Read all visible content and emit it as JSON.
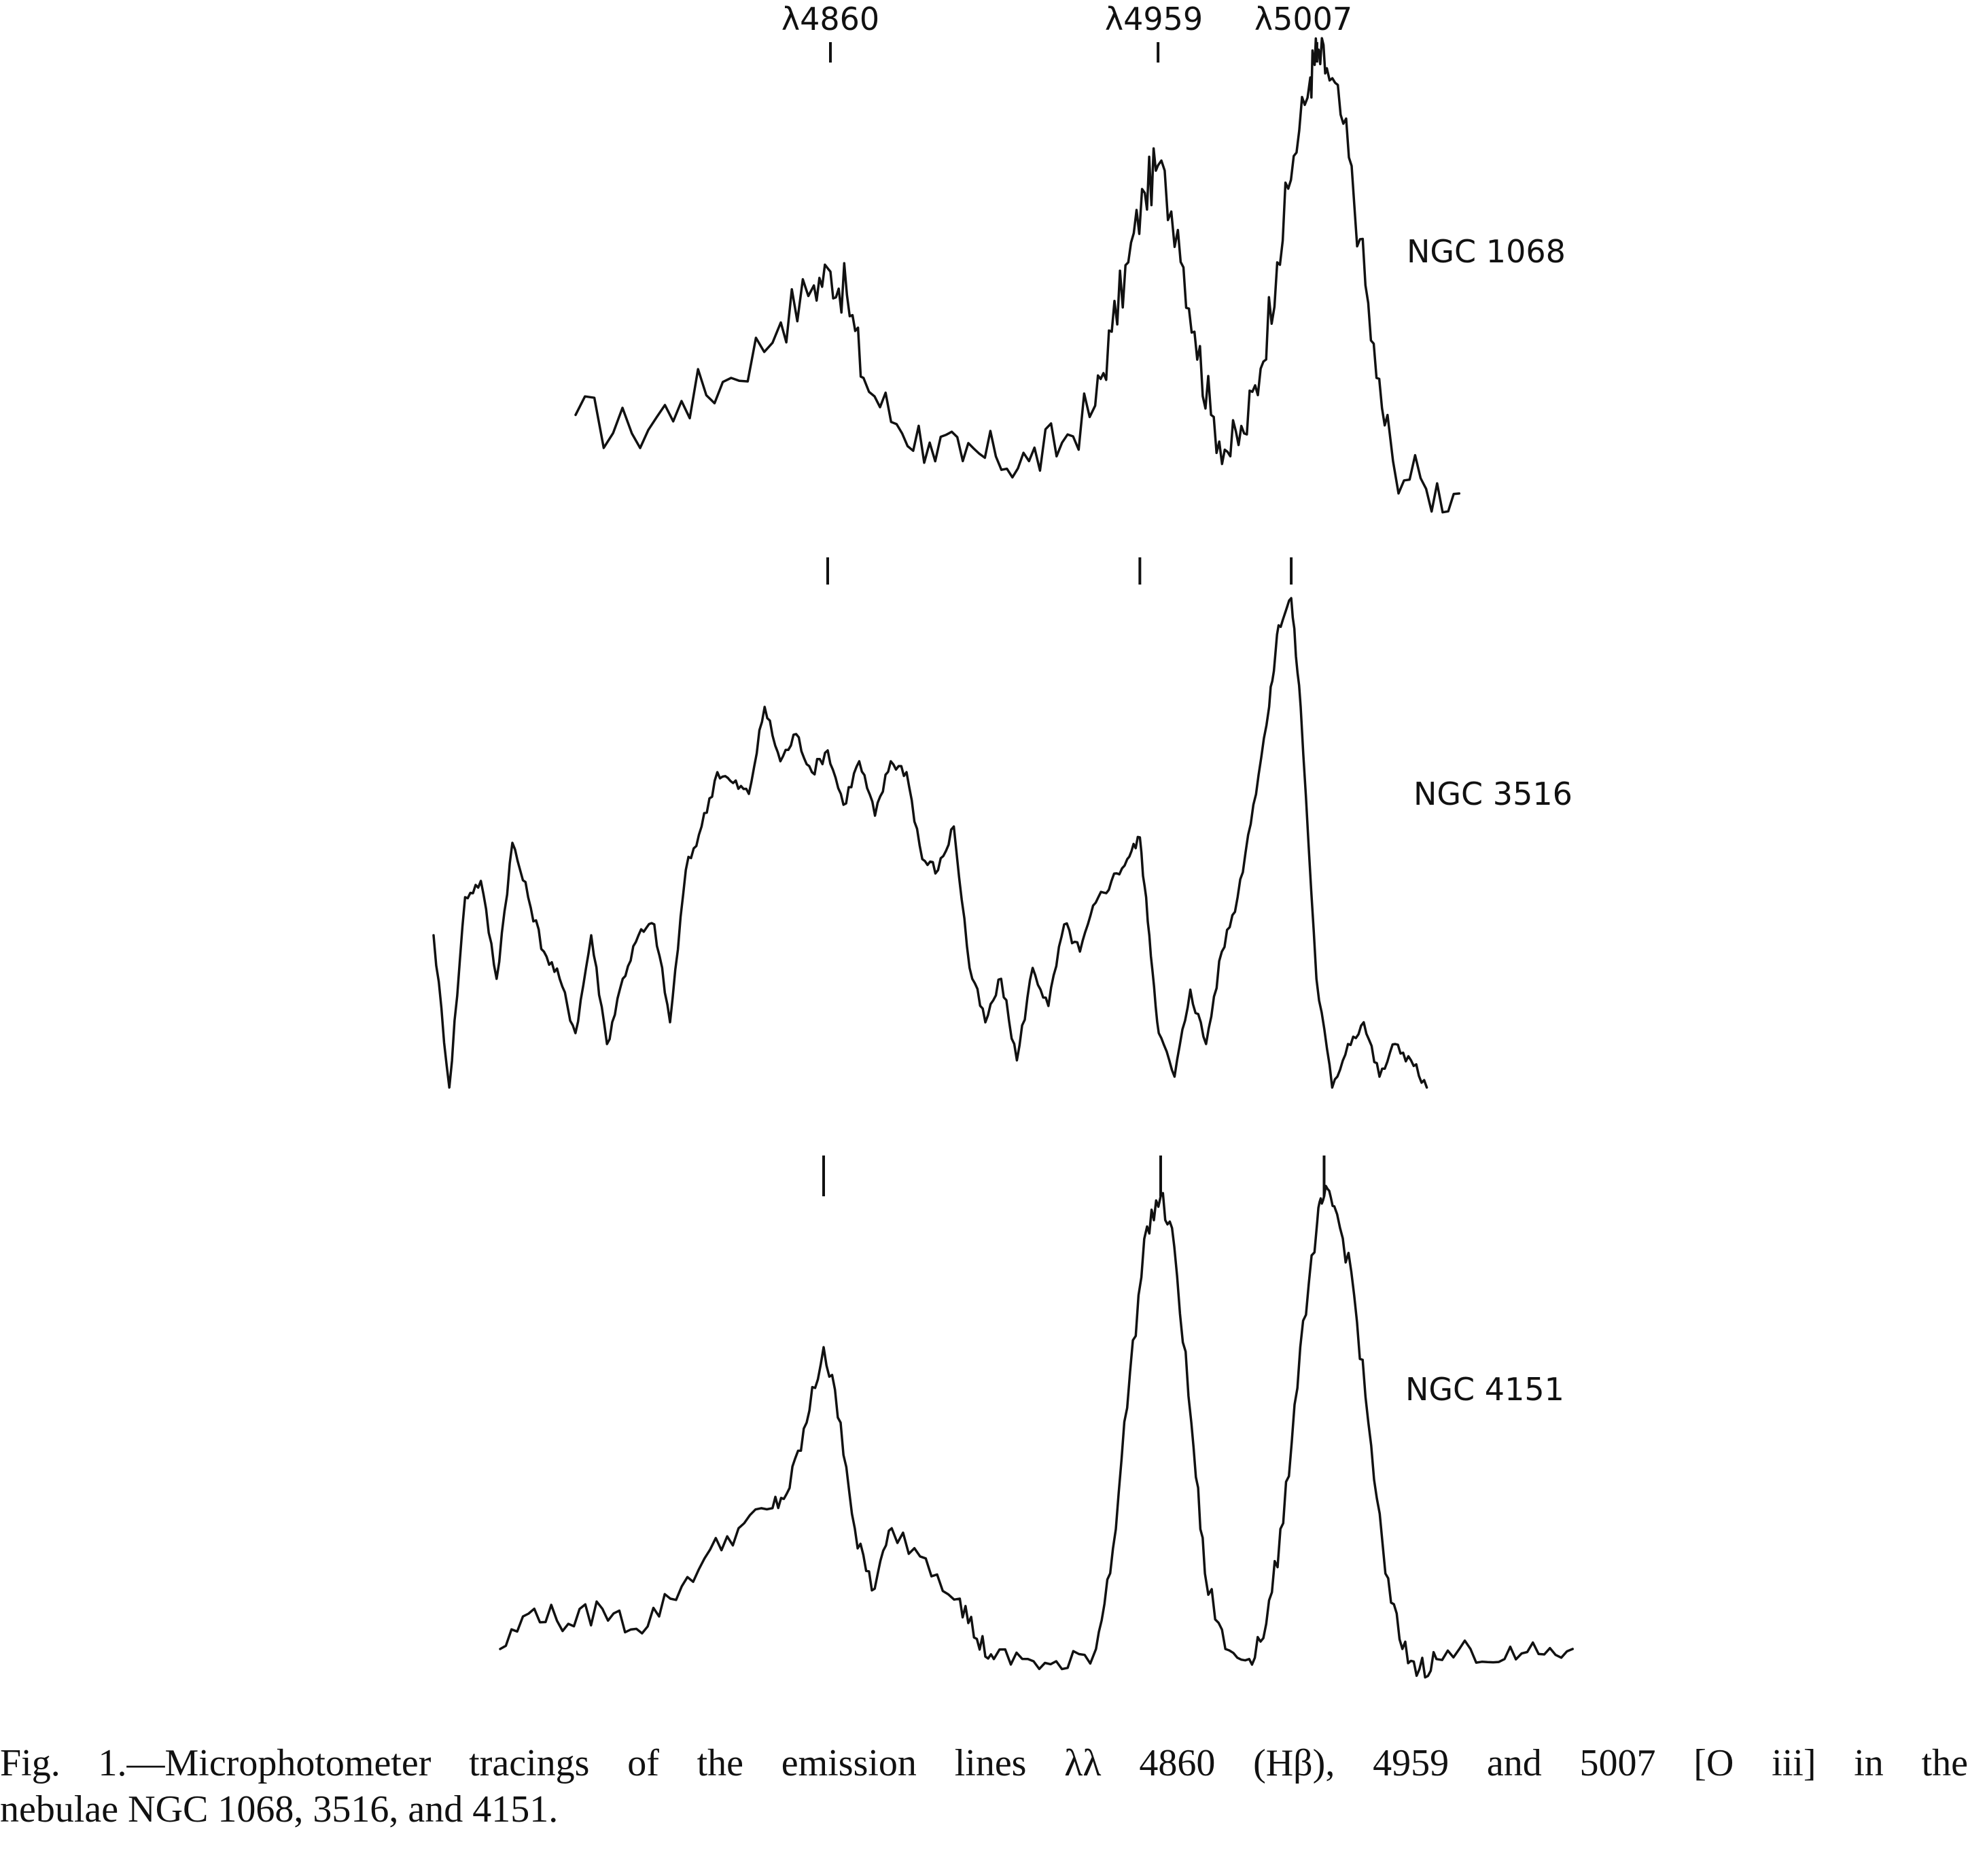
{
  "caption": {
    "line1": "Fig. 1.—Microphotometer tracings of the emission lines λλ 4860 (Hβ), 4959 and 5007 [O iii] in the",
    "line2": "nebulae NGC 1068, 3516, and 4151."
  },
  "chart_data": {
    "type": "line",
    "title": "",
    "xlabel": "",
    "ylabel": "",
    "line_markers": [
      {
        "label": "λ4860",
        "wavelength": 4860
      },
      {
        "label": "λ4959",
        "wavelength": 4959
      },
      {
        "label": "λ5007",
        "wavelength": 5007
      }
    ],
    "series": [
      {
        "name": "NGC 1068",
        "x": [
          4783,
          4800,
          4815,
          4830,
          4845,
          4855,
          4860,
          4865,
          4870,
          4880,
          4890,
          4900,
          4910,
          4920,
          4930,
          4940,
          4945,
          4950,
          4955,
          4959,
          4965,
          4970,
          4975,
          4980,
          4985,
          4990,
          4995,
          5000,
          5005,
          5007,
          5010,
          5015,
          5020,
          5025,
          5030,
          5040,
          5050
        ],
        "y": [
          0.22,
          0.18,
          0.25,
          0.3,
          0.42,
          0.5,
          0.53,
          0.48,
          0.3,
          0.2,
          0.16,
          0.12,
          0.13,
          0.12,
          0.16,
          0.24,
          0.4,
          0.55,
          0.7,
          0.76,
          0.62,
          0.4,
          0.22,
          0.14,
          0.18,
          0.32,
          0.55,
          0.78,
          0.95,
          1.0,
          0.97,
          0.85,
          0.6,
          0.3,
          0.12,
          0.06,
          0.05
        ]
      },
      {
        "name": "NGC 3516",
        "x": [
          4735,
          4740,
          4745,
          4750,
          4755,
          4760,
          4765,
          4770,
          4775,
          4780,
          4785,
          4790,
          4795,
          4800,
          4805,
          4810,
          4815,
          4820,
          4825,
          4830,
          4835,
          4840,
          4845,
          4850,
          4855,
          4860,
          4865,
          4870,
          4875,
          4880,
          4885,
          4890,
          4895,
          4900,
          4905,
          4910,
          4915,
          4920,
          4925,
          4930,
          4935,
          4940,
          4945,
          4950,
          4955,
          4959,
          4962,
          4965,
          4970,
          4975,
          4980,
          4985,
          4990,
          4995,
          5000,
          5003,
          5007,
          5010,
          5015,
          5020,
          5025,
          5030,
          5035,
          5040,
          5045,
          5050
        ],
        "y": [
          0.38,
          0.1,
          0.45,
          0.48,
          0.3,
          0.55,
          0.45,
          0.35,
          0.3,
          0.2,
          0.38,
          0.18,
          0.3,
          0.38,
          0.4,
          0.22,
          0.5,
          0.58,
          0.68,
          0.66,
          0.64,
          0.8,
          0.7,
          0.75,
          0.68,
          0.72,
          0.62,
          0.7,
          0.6,
          0.7,
          0.68,
          0.52,
          0.5,
          0.58,
          0.32,
          0.22,
          0.3,
          0.15,
          0.32,
          0.25,
          0.4,
          0.35,
          0.44,
          0.48,
          0.52,
          0.56,
          0.38,
          0.2,
          0.12,
          0.28,
          0.18,
          0.35,
          0.45,
          0.62,
          0.8,
          0.95,
          1.0,
          0.8,
          0.3,
          0.1,
          0.18,
          0.22,
          0.12,
          0.18,
          0.15,
          0.1
        ]
      },
      {
        "name": "NGC 4151",
        "x": [
          4765,
          4775,
          4785,
          4795,
          4805,
          4815,
          4825,
          4835,
          4845,
          4850,
          4855,
          4860,
          4865,
          4870,
          4875,
          4880,
          4890,
          4900,
          4905,
          4910,
          4920,
          4930,
          4940,
          4945,
          4950,
          4955,
          4959,
          4963,
          4968,
          4972,
          4978,
          4985,
          4990,
          4995,
          5000,
          5005,
          5007,
          5010,
          5015,
          5020,
          5025,
          5030,
          5035,
          5040,
          5050,
          5060,
          5070,
          5080
        ],
        "y": [
          0.1,
          0.18,
          0.15,
          0.18,
          0.14,
          0.2,
          0.28,
          0.34,
          0.38,
          0.42,
          0.55,
          0.7,
          0.55,
          0.3,
          0.22,
          0.34,
          0.28,
          0.2,
          0.12,
          0.08,
          0.08,
          0.06,
          0.1,
          0.3,
          0.65,
          0.94,
          1.0,
          0.9,
          0.55,
          0.25,
          0.1,
          0.08,
          0.15,
          0.35,
          0.7,
          0.95,
          1.0,
          0.98,
          0.85,
          0.55,
          0.25,
          0.1,
          0.06,
          0.08,
          0.1,
          0.08,
          0.09,
          0.1
        ]
      }
    ]
  }
}
